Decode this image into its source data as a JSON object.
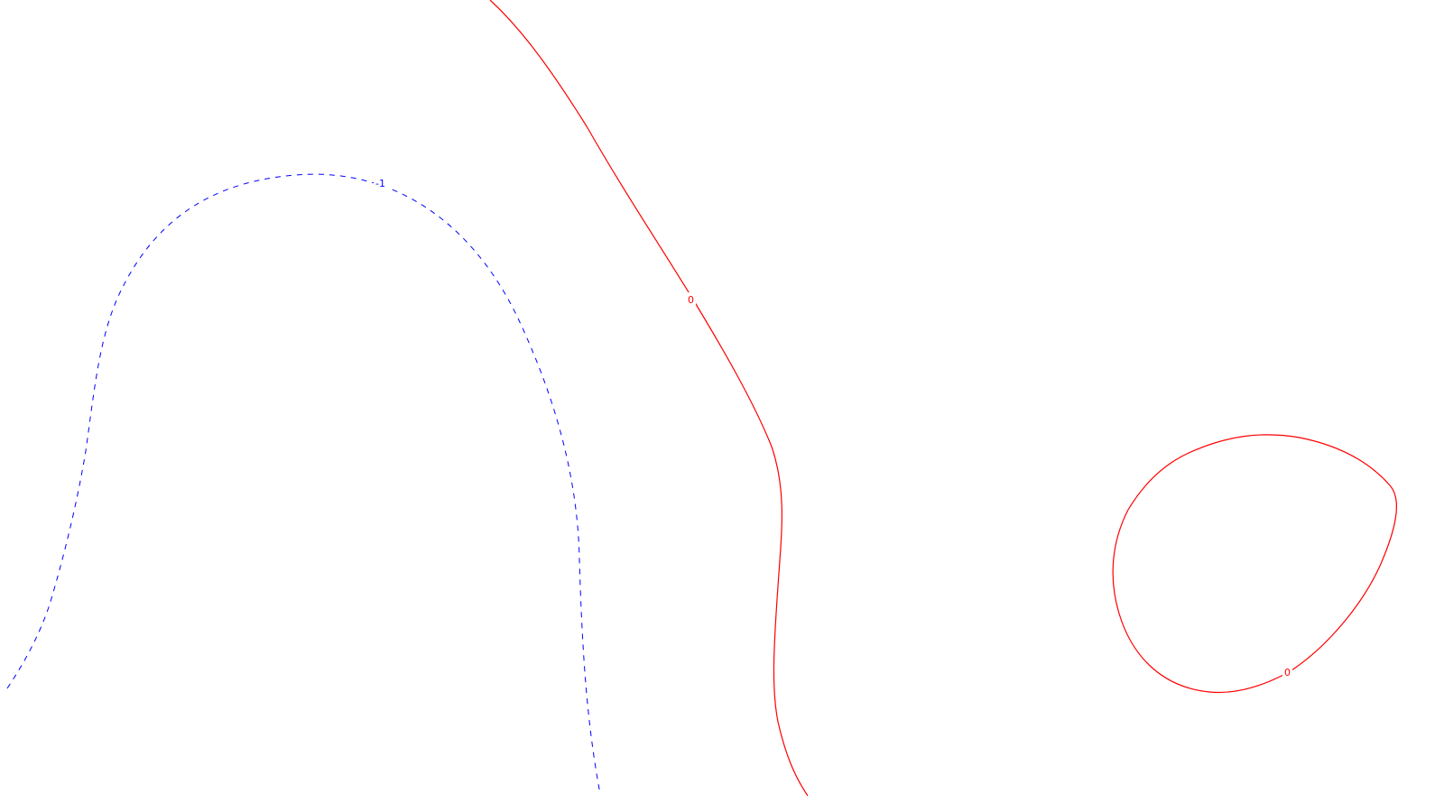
{
  "colors": {
    "background": "#ffffff",
    "negative_contour": "#0000ff",
    "zero_contour": "#ff0000"
  },
  "contours": {
    "negative": {
      "level_label": "-1",
      "line_style": "dashed"
    },
    "zero_curve": {
      "level_label": "0",
      "line_style": "solid"
    },
    "zero_loop": {
      "level_label": "0",
      "line_style": "solid"
    }
  }
}
